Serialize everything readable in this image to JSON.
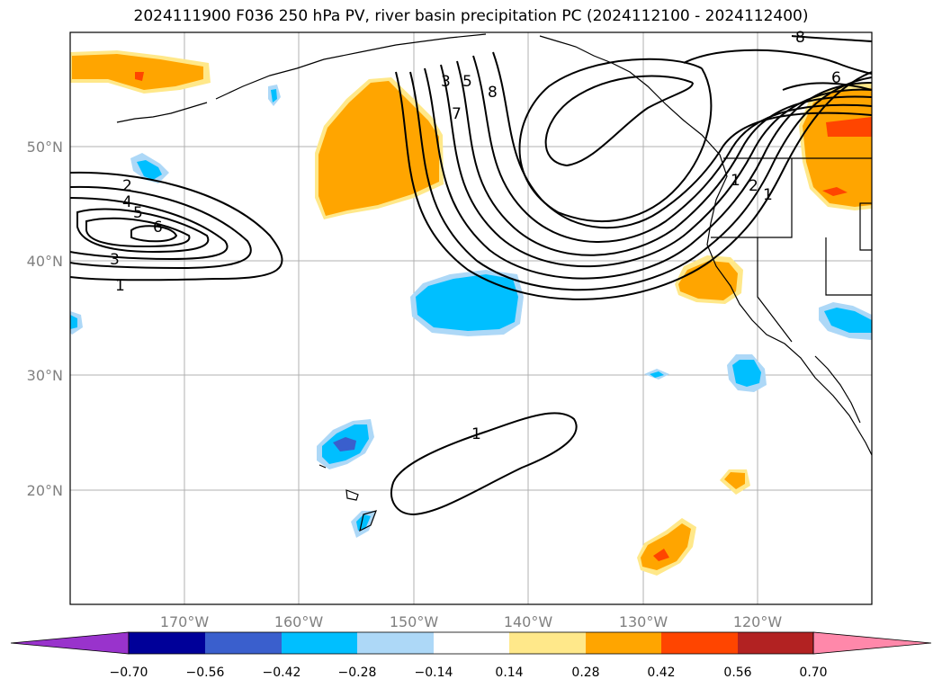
{
  "title": "2024111900 F036 250 hPa PV, river basin precipitation PC (2024112100 - 2024112400)",
  "lon_ticks": [
    "170°W",
    "160°W",
    "150°W",
    "140°W",
    "130°W",
    "120°W"
  ],
  "lat_ticks": [
    "50°N",
    "40°N",
    "30°N",
    "20°N"
  ],
  "colorbar": {
    "tick_labels": [
      "−0.70",
      "−0.56",
      "−0.42",
      "−0.28",
      "−0.14",
      "0.14",
      "0.28",
      "0.42",
      "0.56",
      "0.70"
    ],
    "colors": [
      "#9933cc",
      "#000099",
      "#3a5fcd",
      "#00bfff",
      "#add8f7",
      "#ffffff",
      "#ffe88a",
      "#ffa500",
      "#ff4500",
      "#b22222",
      "#ff88aa"
    ]
  },
  "contour_labels": [
    "1",
    "2",
    "3",
    "4",
    "5",
    "6",
    "1",
    "3",
    "5",
    "8",
    "7",
    "8",
    "6",
    "1",
    "2",
    "1"
  ],
  "fill_colors": {
    "light_blue": "#add8f7",
    "blue": "#00bfff",
    "dark_blue": "#3a5fcd",
    "light_yellow": "#ffe88a",
    "orange": "#ffa500",
    "red_orange": "#ff4500"
  }
}
